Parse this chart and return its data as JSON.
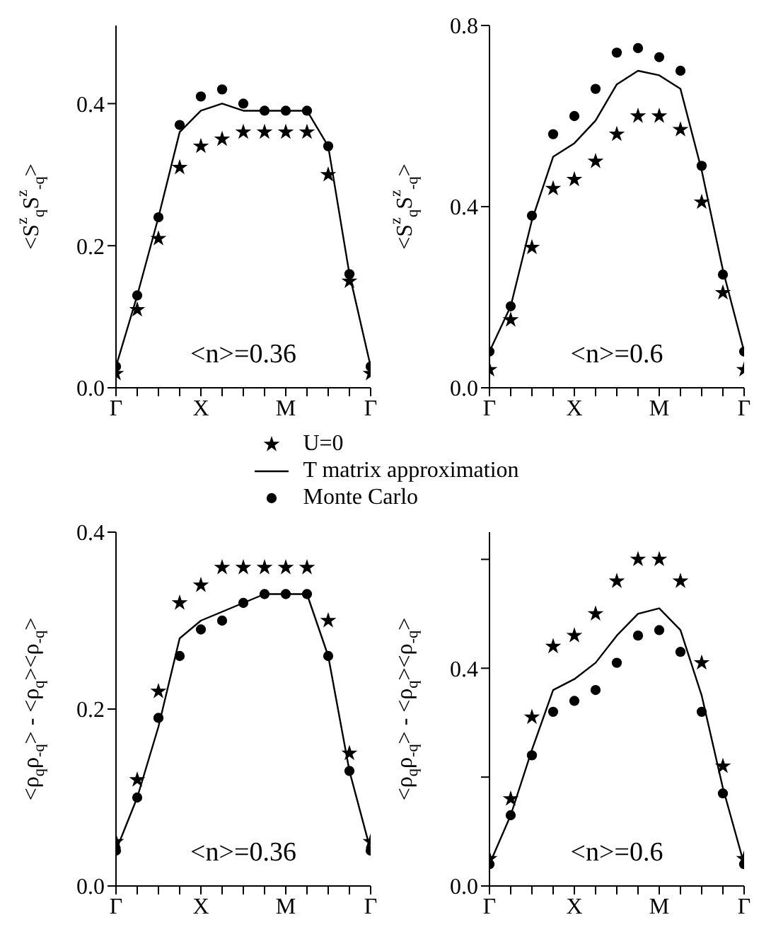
{
  "chart_data": [
    {
      "type": "line",
      "ylabel": "<S$^{z}$$_{q}$S$^{z}$$_{-q}$>",
      "categories": [
        "Γ",
        null,
        null,
        null,
        "X",
        null,
        null,
        null,
        "M",
        null,
        null,
        null,
        "Γ"
      ],
      "ylim": [
        0,
        0.51
      ],
      "yticks": [
        {
          "value": 0,
          "label": "0.0"
        },
        0.2,
        0.4
      ],
      "annotations": [
        "<n>=0.36"
      ],
      "legend": "bottom",
      "series": [
        {
          "name": "U=0",
          "type": "scatter",
          "marker": "star",
          "color": "#000000",
          "values": [
            0.02,
            0.11,
            0.21,
            0.31,
            0.34,
            0.35,
            0.36,
            0.36,
            0.36,
            0.36,
            0.3,
            0.15,
            0.02
          ]
        },
        {
          "name": "T matrix approximation",
          "marker": "none",
          "color": "#000000",
          "values": [
            0.03,
            0.13,
            0.24,
            0.36,
            0.39,
            0.4,
            0.39,
            0.39,
            0.39,
            0.39,
            0.34,
            0.16,
            0.03
          ]
        },
        {
          "name": "Monte Carlo",
          "type": "scatter",
          "marker": "circle",
          "color": "#000000",
          "values": [
            0.03,
            0.13,
            0.24,
            0.37,
            0.41,
            0.42,
            0.4,
            0.39,
            0.39,
            0.39,
            0.34,
            0.16,
            0.03
          ]
        }
      ]
    },
    {
      "type": "line",
      "ylabel": "<S$^{z}$$_{q}$S$^{z}$$_{-q}$>",
      "categories": [
        "Γ",
        null,
        null,
        null,
        "X",
        null,
        null,
        null,
        "M",
        null,
        null,
        null,
        "Γ"
      ],
      "ylim": [
        0,
        0.8
      ],
      "yticks": [
        {
          "value": 0,
          "label": "0.0"
        },
        0.4,
        0.8
      ],
      "annotations": [
        "<n>=0.6"
      ],
      "series": [
        {
          "type": "scatter",
          "marker": "star",
          "color": "#000000",
          "values": [
            0.04,
            0.15,
            0.31,
            0.44,
            0.46,
            0.5,
            0.56,
            0.6,
            0.6,
            0.57,
            0.41,
            0.21,
            0.04
          ]
        },
        {
          "marker": "none",
          "color": "#000000",
          "values": [
            0.08,
            0.18,
            0.37,
            0.51,
            0.54,
            0.59,
            0.67,
            0.7,
            0.69,
            0.66,
            0.48,
            0.26,
            0.08
          ]
        },
        {
          "type": "scatter",
          "marker": "circle",
          "color": "#000000",
          "values": [
            0.08,
            0.18,
            0.38,
            0.56,
            0.6,
            0.66,
            0.74,
            0.75,
            0.73,
            0.7,
            0.49,
            0.25,
            0.08
          ]
        }
      ]
    },
    {
      "type": "line",
      "ylabel": "<ρ$_{q}$ρ$_{-q}$> - <ρ$_{q}$><ρ$_{-q}$>",
      "categories": [
        "Γ",
        null,
        null,
        null,
        "X",
        null,
        null,
        null,
        "M",
        null,
        null,
        null,
        "Γ"
      ],
      "ylim": [
        0,
        0.4
      ],
      "yticks": [
        {
          "value": 0,
          "label": "0.0"
        },
        0.2,
        0.4
      ],
      "annotations": [
        "<n>=0.36"
      ],
      "series": [
        {
          "type": "scatter",
          "marker": "star",
          "color": "#000000",
          "values": [
            0.05,
            0.12,
            0.22,
            0.32,
            0.34,
            0.36,
            0.36,
            0.36,
            0.36,
            0.36,
            0.3,
            0.15,
            0.05
          ]
        },
        {
          "marker": "none",
          "color": "#000000",
          "values": [
            0.04,
            0.1,
            0.18,
            0.28,
            0.3,
            0.31,
            0.32,
            0.33,
            0.33,
            0.33,
            0.26,
            0.13,
            0.04
          ]
        },
        {
          "type": "scatter",
          "marker": "circle",
          "color": "#000000",
          "values": [
            0.04,
            0.1,
            0.19,
            0.26,
            0.29,
            0.3,
            0.32,
            0.33,
            0.33,
            0.33,
            0.26,
            0.13,
            0.04
          ]
        }
      ]
    },
    {
      "type": "line",
      "ylabel": "<ρ$_{q}$ρ$_{-q}$> - <ρ$_{q}$><ρ$_{-q}$>",
      "categories": [
        "Γ",
        null,
        null,
        null,
        "X",
        null,
        null,
        null,
        "M",
        null,
        null,
        null,
        "Γ"
      ],
      "ylim": [
        0,
        0.65
      ],
      "yticks": [
        {
          "value": 0,
          "label": "0.0"
        },
        {
          "value": 0.2,
          "label": null
        },
        0.4,
        {
          "value": 0.6,
          "label": null
        }
      ],
      "annotations": [
        "<n>=0.6"
      ],
      "series": [
        {
          "type": "scatter",
          "marker": "star",
          "color": "#000000",
          "values": [
            0.05,
            0.16,
            0.31,
            0.44,
            0.46,
            0.5,
            0.56,
            0.6,
            0.6,
            0.56,
            0.41,
            0.22,
            0.05
          ]
        },
        {
          "marker": "none",
          "color": "#000000",
          "values": [
            0.04,
            0.13,
            0.25,
            0.36,
            0.38,
            0.41,
            0.46,
            0.5,
            0.51,
            0.47,
            0.35,
            0.18,
            0.04
          ]
        },
        {
          "type": "scatter",
          "marker": "circle",
          "color": "#000000",
          "values": [
            0.04,
            0.13,
            0.24,
            0.32,
            0.34,
            0.36,
            0.41,
            0.46,
            0.47,
            0.43,
            0.32,
            0.17,
            0.04
          ]
        }
      ]
    }
  ]
}
